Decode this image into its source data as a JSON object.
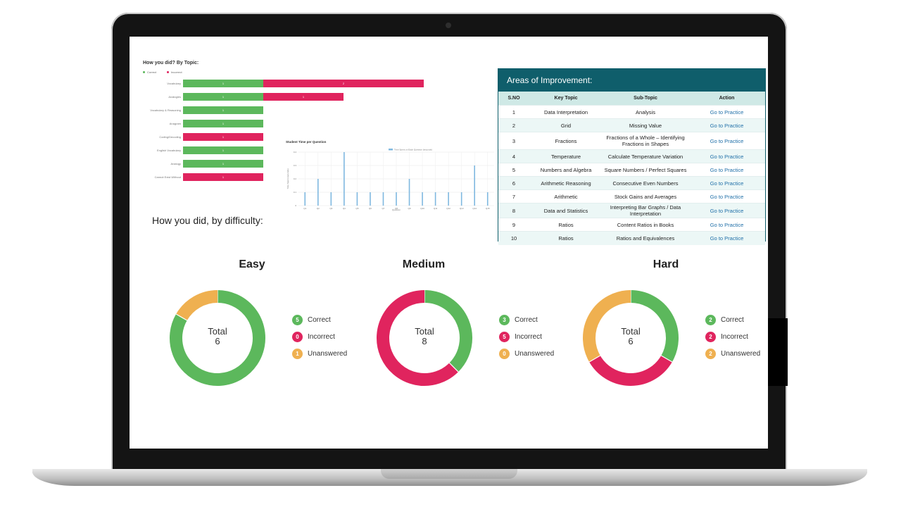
{
  "topic_chart": {
    "title": "How you did? By Topic:",
    "legend": [
      {
        "label": "Correct",
        "color": "#5cb85c"
      },
      {
        "label": "Incorrect",
        "color": "#e0245e"
      }
    ],
    "rows": [
      {
        "label": "Vocabulary",
        "correct": 1,
        "incorrect": 2
      },
      {
        "label": "Analogies",
        "correct": 1,
        "incorrect": 1
      },
      {
        "label": "Vocabulary & Reasoning",
        "correct": 1,
        "incorrect": 0
      },
      {
        "label": "Anagram",
        "correct": 1,
        "incorrect": 0
      },
      {
        "label": "Coding/Decoding",
        "correct": 0,
        "incorrect": 1
      },
      {
        "label": "English Vocabulary",
        "correct": 1,
        "incorrect": 0
      },
      {
        "label": "Analogy",
        "correct": 1,
        "incorrect": 0
      },
      {
        "label": "Cannot Exist Without",
        "correct": 0,
        "incorrect": 1
      }
    ]
  },
  "time_chart": {
    "title": "Student Time per Question",
    "legend": "Time Spent on Each Question (seconds)",
    "xlabel": "Question",
    "ylabel": "Time Spent (seconds)"
  },
  "chart_data": {
    "type": "bar",
    "categories": [
      "Q1",
      "Q2",
      "Q3",
      "Q4",
      "Q5",
      "Q6",
      "Q7",
      "Q8",
      "Q9",
      "Q10",
      "Q11",
      "Q12",
      "Q13",
      "Q14",
      "Q15"
    ],
    "values": [
      0.1,
      0.2,
      0.1,
      0.4,
      0.1,
      0.1,
      0.1,
      0.1,
      0.2,
      0.1,
      0.1,
      0.1,
      0.1,
      0.3,
      0.1
    ],
    "title": "Student Time per Question",
    "xlabel": "Question",
    "ylabel": "Time Spent (seconds)",
    "ylim": [
      0,
      0.4
    ],
    "yticks": [
      "0",
      "0.1",
      "0.2",
      "0.3",
      "0.4"
    ]
  },
  "difficulty": {
    "title": "How you did, by difficulty:",
    "total_label": "Total",
    "colors": {
      "correct": "#5cb85c",
      "incorrect": "#e0245e",
      "unanswered": "#efb050"
    },
    "legend_labels": {
      "correct": "Correct",
      "incorrect": "Incorrect",
      "unanswered": "Unanswered"
    },
    "donuts": [
      {
        "name": "Easy",
        "total": 6,
        "correct": 5,
        "incorrect": 0,
        "unanswered": 1
      },
      {
        "name": "Medium",
        "total": 8,
        "correct": 3,
        "incorrect": 5,
        "unanswered": 0
      },
      {
        "name": "Hard",
        "total": 6,
        "correct": 2,
        "incorrect": 2,
        "unanswered": 2
      }
    ]
  },
  "improvement": {
    "title": "Areas of Improvement:",
    "headers": [
      "S.NO",
      "Key Topic",
      "Sub-Topic",
      "Action"
    ],
    "rows": [
      [
        "1",
        "Data Interpretation",
        "Analysis",
        "Go to Practice"
      ],
      [
        "2",
        "Grid",
        "Missing Value",
        "Go to Practice"
      ],
      [
        "3",
        "Fractions",
        "Fractions of a Whole – Identifying Fractions in Shapes",
        "Go to Practice"
      ],
      [
        "4",
        "Temperature",
        "Calculate Temperature Variation",
        "Go to Practice"
      ],
      [
        "5",
        "Numbers and Algebra",
        "Square Numbers / Perfect Squares",
        "Go to Practice"
      ],
      [
        "6",
        "Arithmetic Reasoning",
        "Consecutive Even Numbers",
        "Go to Practice"
      ],
      [
        "7",
        "Arithmetic",
        "Stock Gains and Averages",
        "Go to Practice"
      ],
      [
        "8",
        "Data and Statistics",
        "Interpreting Bar Graphs / Data Interpretation",
        "Go to Practice"
      ],
      [
        "9",
        "Ratios",
        "Content Ratios in Books",
        "Go to Practice"
      ],
      [
        "10",
        "Ratios",
        "Ratios and Equivalences",
        "Go to Practice"
      ]
    ]
  }
}
